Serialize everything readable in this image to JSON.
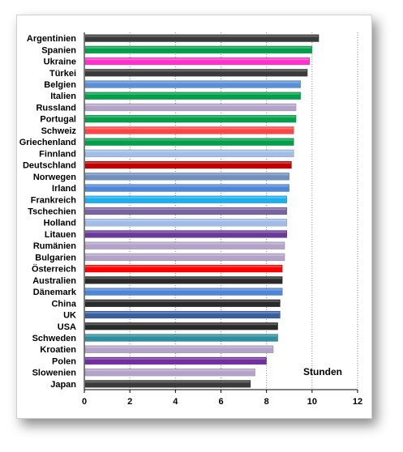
{
  "chart_data": {
    "type": "bar",
    "orientation": "horizontal",
    "categories": [
      "Argentinien",
      "Spanien",
      "Ukraine",
      "Türkei",
      "Belgien",
      "Italien",
      "Russland",
      "Portugal",
      "Schweiz",
      "Griechenland",
      "Finnland",
      "Deutschland",
      "Norwegen",
      "Irland",
      "Frankreich",
      "Tschechien",
      "Holland",
      "Litauen",
      "Rumänien",
      "Bulgarien",
      "Österreich",
      "Australien",
      "Dänemark",
      "China",
      "UK",
      "USA",
      "Schweden",
      "Kroatien",
      "Polen",
      "Slowenien",
      "Japan"
    ],
    "values": [
      10.3,
      10.0,
      9.9,
      9.8,
      9.5,
      9.5,
      9.3,
      9.3,
      9.2,
      9.2,
      9.2,
      9.1,
      9.0,
      9.0,
      8.9,
      8.9,
      8.9,
      8.9,
      8.8,
      8.8,
      8.7,
      8.7,
      8.7,
      8.6,
      8.6,
      8.5,
      8.5,
      8.3,
      8.0,
      7.5,
      7.3
    ],
    "colors": [
      "#3a3a3a",
      "#00a04a",
      "#ff33cc",
      "#3a3a3a",
      "#5b8fd8",
      "#00a04a",
      "#b3a3c8",
      "#00a04a",
      "#ff4444",
      "#00a04a",
      "#9fbde6",
      "#c00000",
      "#6f8fbf",
      "#4f87d8",
      "#1ab0f0",
      "#7a64a0",
      "#9fbde6",
      "#6a3a9a",
      "#b3a3c8",
      "#b3a3c8",
      "#ff0000",
      "#2a2a2a",
      "#4f87d8",
      "#2a2a2a",
      "#3a5fa0",
      "#2a2a2a",
      "#2e8ea0",
      "#b3a3c8",
      "#7030a0",
      "#b3a3c8",
      "#3a3a3a"
    ],
    "xlim": [
      0,
      12
    ],
    "xticks": [
      "0",
      "2",
      "4",
      "6",
      "8",
      "10",
      "12"
    ],
    "grid": true,
    "unit_label": "Stunden"
  }
}
